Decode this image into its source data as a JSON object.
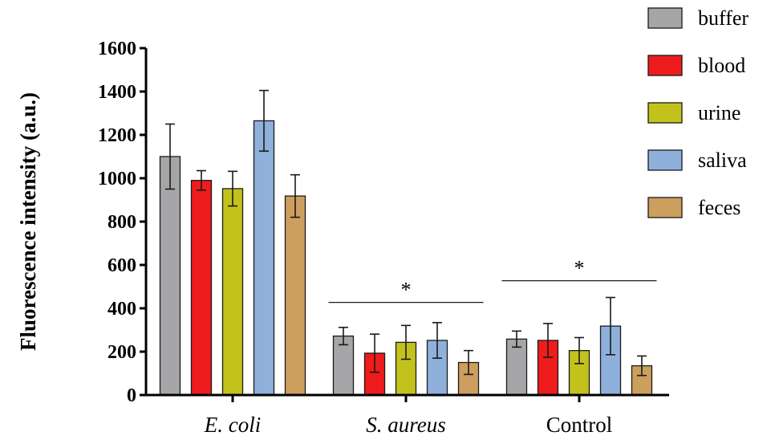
{
  "chart_data": {
    "type": "bar",
    "title": "",
    "xlabel": "",
    "ylabel": "Fluorescence intensity (a.u.)",
    "ylim": [
      0,
      1600
    ],
    "yticks": [
      0,
      200,
      400,
      600,
      800,
      1000,
      1200,
      1400,
      1600
    ],
    "grid": false,
    "legend_position": "top-right",
    "categories": [
      "E. coli",
      "S. aureus",
      "Control"
    ],
    "category_italic": [
      true,
      true,
      false
    ],
    "series": [
      {
        "name": "buffer",
        "color": "#a6a6a8",
        "values": [
          1100,
          272,
          258
        ],
        "errors": [
          150,
          40,
          37
        ]
      },
      {
        "name": "blood",
        "color": "#ee1c1c",
        "values": [
          990,
          193,
          252
        ],
        "errors": [
          45,
          88,
          78
        ]
      },
      {
        "name": "urine",
        "color": "#c3c21c",
        "values": [
          952,
          243,
          205
        ],
        "errors": [
          80,
          78,
          60
        ]
      },
      {
        "name": "saliva",
        "color": "#8fb0db",
        "values": [
          1265,
          252,
          318
        ],
        "errors": [
          140,
          82,
          132
        ]
      },
      {
        "name": "feces",
        "color": "#cc9f5f",
        "values": [
          918,
          150,
          135
        ],
        "errors": [
          98,
          55,
          45
        ]
      }
    ],
    "annotations": [
      {
        "category": "S. aureus",
        "text": "*",
        "line_value": 427
      },
      {
        "category": "Control",
        "text": "*",
        "line_value": 527
      }
    ]
  }
}
